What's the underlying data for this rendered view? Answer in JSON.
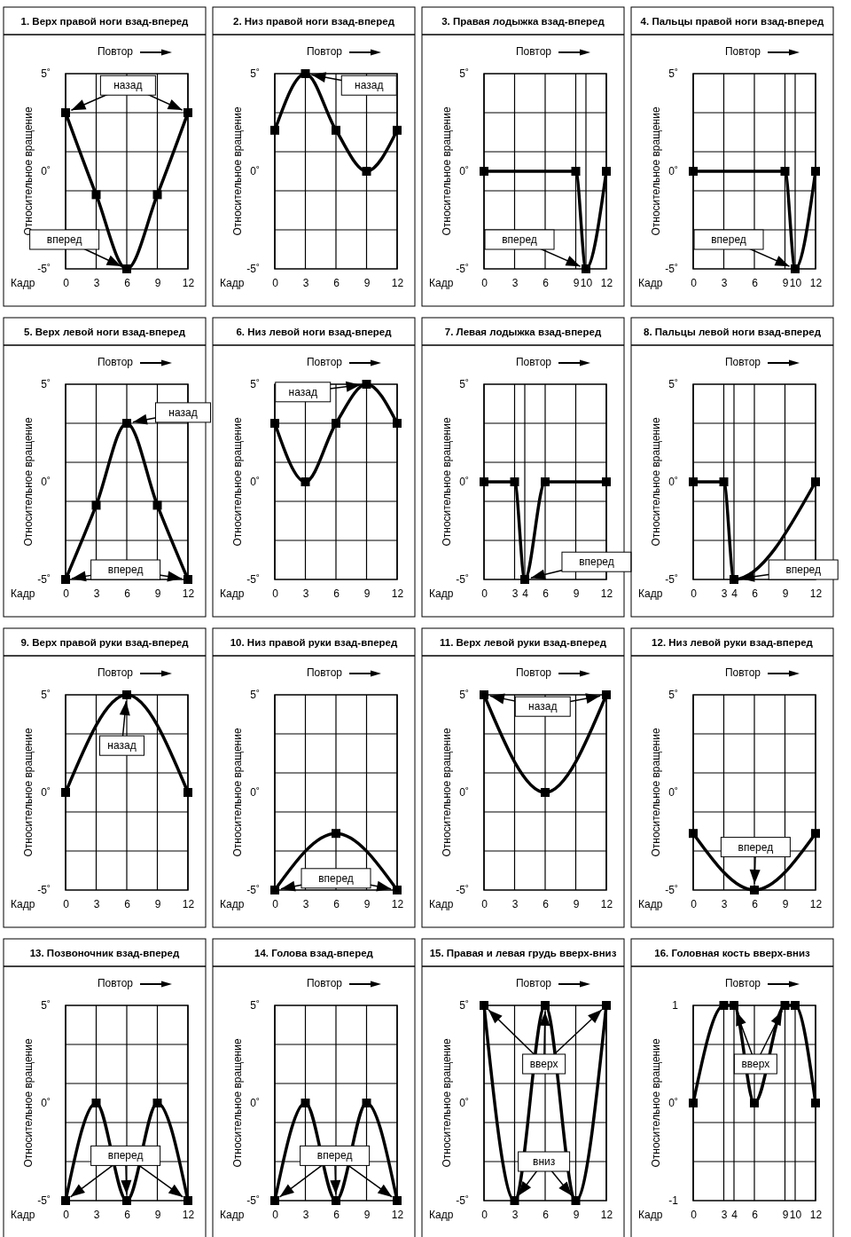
{
  "chart_data": [
    {
      "type": "line",
      "title": "1. Верх правой ноги взад-вперед",
      "xlabel": "Кадр",
      "ylabel": "Относительное вращение",
      "x": [
        0,
        3,
        6,
        9,
        12
      ],
      "values": [
        3,
        -1.2,
        -5,
        -1.2,
        3
      ],
      "color": "#000000",
      "marker": "square",
      "grid": true,
      "xlim": [
        0,
        12
      ],
      "ylim": [
        -5,
        5
      ],
      "xticks": [
        0,
        3,
        6,
        9,
        12
      ],
      "yticks": [
        {
          "value": -5,
          "label": "-5˚"
        },
        {
          "value": -3,
          "label": null
        },
        {
          "value": -1,
          "label": null
        },
        {
          "value": 0,
          "label": "0˚"
        },
        {
          "value": 1,
          "label": null
        },
        {
          "value": 3,
          "label": null
        },
        {
          "value": 5,
          "label": "5˚"
        }
      ],
      "annotations": [
        "Повтор",
        {
          "text": "назад",
          "x": 0,
          "y": 3
        },
        {
          "text": "вперед",
          "x": 6,
          "y": -5
        }
      ]
    },
    {
      "type": "line",
      "title": "2. Низ правой ноги взад-вперед",
      "xlabel": "Кадр",
      "ylabel": "Относительное вращение",
      "x": [
        0,
        3,
        6,
        9,
        12
      ],
      "values": [
        2.1,
        5,
        2.1,
        0,
        2.1
      ],
      "color": "#000000",
      "marker": "square",
      "grid": true,
      "xlim": [
        0,
        12
      ],
      "ylim": [
        -5,
        5
      ],
      "xticks": [
        0,
        3,
        6,
        9,
        12
      ],
      "yticks": [
        {
          "value": -5,
          "label": "-5˚"
        },
        {
          "value": -3,
          "label": null
        },
        {
          "value": -1,
          "label": null
        },
        {
          "value": 0,
          "label": "0˚"
        },
        {
          "value": 1,
          "label": null
        },
        {
          "value": 3,
          "label": null
        },
        {
          "value": 5,
          "label": "5˚"
        }
      ],
      "annotations": [
        "Повтор",
        {
          "text": "назад",
          "x": 3,
          "y": 5
        }
      ]
    },
    {
      "type": "line",
      "title": "3. Правая лодыжка взад-вперед",
      "xlabel": "Кадр",
      "ylabel": "Относительное вращение",
      "x": [
        0,
        9,
        10,
        12
      ],
      "values": [
        0,
        0,
        -5,
        0
      ],
      "color": "#000000",
      "marker": "square",
      "grid": true,
      "xlim": [
        0,
        12
      ],
      "ylim": [
        -5,
        5
      ],
      "xticks": [
        0,
        3,
        6,
        9,
        10,
        12
      ],
      "yticks": [
        {
          "value": -5,
          "label": "-5˚"
        },
        {
          "value": -3,
          "label": null
        },
        {
          "value": -1,
          "label": null
        },
        {
          "value": 0,
          "label": "0˚"
        },
        {
          "value": 1,
          "label": null
        },
        {
          "value": 3,
          "label": null
        },
        {
          "value": 5,
          "label": "5˚"
        }
      ],
      "annotations": [
        "Повтор",
        {
          "text": "вперед",
          "x": 10,
          "y": -5
        }
      ]
    },
    {
      "type": "line",
      "title": "4. Пальцы правой ноги взад-вперед",
      "xlabel": "Кадр",
      "ylabel": "Относительное вращение",
      "x": [
        0,
        9,
        10,
        12
      ],
      "values": [
        0,
        0,
        -5,
        0
      ],
      "color": "#000000",
      "marker": "square",
      "grid": true,
      "xlim": [
        0,
        12
      ],
      "ylim": [
        -5,
        5
      ],
      "xticks": [
        0,
        3,
        6,
        9,
        10,
        12
      ],
      "yticks": [
        {
          "value": -5,
          "label": "-5˚"
        },
        {
          "value": -3,
          "label": null
        },
        {
          "value": -1,
          "label": null
        },
        {
          "value": 0,
          "label": "0˚"
        },
        {
          "value": 1,
          "label": null
        },
        {
          "value": 3,
          "label": null
        },
        {
          "value": 5,
          "label": "5˚"
        }
      ],
      "annotations": [
        "Повтор",
        {
          "text": "вперед",
          "x": 10,
          "y": -5
        }
      ]
    },
    {
      "type": "line",
      "title": "5. Верх левой ноги взад-вперед",
      "xlabel": "Кадр",
      "ylabel": "Относительное вращение",
      "x": [
        0,
        3,
        6,
        9,
        12
      ],
      "values": [
        -5,
        -1.2,
        3,
        -1.2,
        -5
      ],
      "color": "#000000",
      "marker": "square",
      "grid": true,
      "xlim": [
        0,
        12
      ],
      "ylim": [
        -5,
        5
      ],
      "xticks": [
        0,
        3,
        6,
        9,
        12
      ],
      "yticks": [
        {
          "value": -5,
          "label": "-5˚"
        },
        {
          "value": -3,
          "label": null
        },
        {
          "value": -1,
          "label": null
        },
        {
          "value": 0,
          "label": "0˚"
        },
        {
          "value": 1,
          "label": null
        },
        {
          "value": 3,
          "label": null
        },
        {
          "value": 5,
          "label": "5˚"
        }
      ],
      "annotations": [
        "Повтор",
        {
          "text": "назад",
          "x": 6,
          "y": 3
        },
        {
          "text": "вперед",
          "x": 0,
          "y": -5
        }
      ]
    },
    {
      "type": "line",
      "title": "6. Низ левой ноги взад-вперед",
      "xlabel": "Кадр",
      "ylabel": "Относительное вращение",
      "x": [
        0,
        3,
        6,
        9,
        12
      ],
      "values": [
        3,
        0,
        3,
        5,
        3
      ],
      "color": "#000000",
      "marker": "square",
      "grid": true,
      "xlim": [
        0,
        12
      ],
      "ylim": [
        -5,
        5
      ],
      "xticks": [
        0,
        3,
        6,
        9,
        12
      ],
      "yticks": [
        {
          "value": -5,
          "label": "-5˚"
        },
        {
          "value": -3,
          "label": null
        },
        {
          "value": -1,
          "label": null
        },
        {
          "value": 0,
          "label": "0˚"
        },
        {
          "value": 1,
          "label": null
        },
        {
          "value": 3,
          "label": null
        },
        {
          "value": 5,
          "label": "5˚"
        }
      ],
      "annotations": [
        "Повтор",
        {
          "text": "назад",
          "x": 9,
          "y": 5
        }
      ]
    },
    {
      "type": "line",
      "title": "7. Левая лодыжка взад-вперед",
      "xlabel": "Кадр",
      "ylabel": "Относительное вращение",
      "x": [
        0,
        3,
        4,
        6,
        12
      ],
      "values": [
        0,
        0,
        -5,
        0,
        0
      ],
      "color": "#000000",
      "marker": "square",
      "grid": true,
      "xlim": [
        0,
        12
      ],
      "ylim": [
        -5,
        5
      ],
      "xticks": [
        0,
        3,
        4,
        6,
        9,
        12
      ],
      "yticks": [
        {
          "value": -5,
          "label": "-5˚"
        },
        {
          "value": -3,
          "label": null
        },
        {
          "value": -1,
          "label": null
        },
        {
          "value": 0,
          "label": "0˚"
        },
        {
          "value": 1,
          "label": null
        },
        {
          "value": 3,
          "label": null
        },
        {
          "value": 5,
          "label": "5˚"
        }
      ],
      "annotations": [
        "Повтор",
        {
          "text": "вперед",
          "x": 4,
          "y": -5
        }
      ]
    },
    {
      "type": "line",
      "title": "8. Пальцы левой ноги взад-вперед",
      "xlabel": "Кадр",
      "ylabel": "Относительное вращение",
      "x": [
        0,
        3,
        4,
        12
      ],
      "values": [
        0,
        0,
        -5,
        0
      ],
      "color": "#000000",
      "marker": "square",
      "grid": true,
      "xlim": [
        0,
        12
      ],
      "ylim": [
        -5,
        5
      ],
      "xticks": [
        0,
        3,
        4,
        6,
        9,
        12
      ],
      "yticks": [
        {
          "value": -5,
          "label": "-5˚"
        },
        {
          "value": -3,
          "label": null
        },
        {
          "value": -1,
          "label": null
        },
        {
          "value": 0,
          "label": "0˚"
        },
        {
          "value": 1,
          "label": null
        },
        {
          "value": 3,
          "label": null
        },
        {
          "value": 5,
          "label": "5˚"
        }
      ],
      "annotations": [
        "Повтор",
        {
          "text": "вперед",
          "x": 4,
          "y": -5
        }
      ]
    },
    {
      "type": "line",
      "title": "9. Верх правой руки взад-вперед",
      "xlabel": "Кадр",
      "ylabel": "Относительное вращение",
      "x": [
        0,
        6,
        12
      ],
      "values": [
        0,
        5,
        0
      ],
      "color": "#000000",
      "marker": "square",
      "grid": true,
      "xlim": [
        0,
        12
      ],
      "ylim": [
        -5,
        5
      ],
      "xticks": [
        0,
        3,
        6,
        9,
        12
      ],
      "yticks": [
        {
          "value": -5,
          "label": "-5˚"
        },
        {
          "value": -3,
          "label": null
        },
        {
          "value": -1,
          "label": null
        },
        {
          "value": 0,
          "label": "0˚"
        },
        {
          "value": 1,
          "label": null
        },
        {
          "value": 3,
          "label": null
        },
        {
          "value": 5,
          "label": "5˚"
        }
      ],
      "annotations": [
        "Повтор",
        {
          "text": "назад",
          "x": 6,
          "y": 5
        }
      ]
    },
    {
      "type": "line",
      "title": "10. Низ правой руки взад-вперед",
      "xlabel": "Кадр",
      "ylabel": "Относительное вращение",
      "x": [
        0,
        6,
        12
      ],
      "values": [
        -5,
        -2.1,
        -5
      ],
      "color": "#000000",
      "marker": "square",
      "grid": true,
      "xlim": [
        0,
        12
      ],
      "ylim": [
        -5,
        5
      ],
      "xticks": [
        0,
        3,
        6,
        9,
        12
      ],
      "yticks": [
        {
          "value": -5,
          "label": "-5˚"
        },
        {
          "value": -3,
          "label": null
        },
        {
          "value": -1,
          "label": null
        },
        {
          "value": 0,
          "label": "0˚"
        },
        {
          "value": 1,
          "label": null
        },
        {
          "value": 3,
          "label": null
        },
        {
          "value": 5,
          "label": "5˚"
        }
      ],
      "annotations": [
        "Повтор",
        {
          "text": "вперед",
          "x": 0,
          "y": -5
        }
      ]
    },
    {
      "type": "line",
      "title": "11. Верх левой руки взад-вперед",
      "xlabel": "Кадр",
      "ylabel": "Относительное вращение",
      "x": [
        0,
        6,
        12
      ],
      "values": [
        5,
        0,
        5
      ],
      "color": "#000000",
      "marker": "square",
      "grid": true,
      "xlim": [
        0,
        12
      ],
      "ylim": [
        -5,
        5
      ],
      "xticks": [
        0,
        3,
        6,
        9,
        12
      ],
      "yticks": [
        {
          "value": -5,
          "label": "-5˚"
        },
        {
          "value": -3,
          "label": null
        },
        {
          "value": -1,
          "label": null
        },
        {
          "value": 0,
          "label": "0˚"
        },
        {
          "value": 1,
          "label": null
        },
        {
          "value": 3,
          "label": null
        },
        {
          "value": 5,
          "label": "5˚"
        }
      ],
      "annotations": [
        "Повтор",
        {
          "text": "назад",
          "x": 0,
          "y": 5
        }
      ]
    },
    {
      "type": "line",
      "title": "12. Низ левой руки взад-вперед",
      "xlabel": "Кадр",
      "ylabel": "Относительное вращение",
      "x": [
        0,
        6,
        12
      ],
      "values": [
        -2.1,
        -5,
        -2.1
      ],
      "color": "#000000",
      "marker": "square",
      "grid": true,
      "xlim": [
        0,
        12
      ],
      "ylim": [
        -5,
        5
      ],
      "xticks": [
        0,
        3,
        6,
        9,
        12
      ],
      "yticks": [
        {
          "value": -5,
          "label": "-5˚"
        },
        {
          "value": -3,
          "label": null
        },
        {
          "value": -1,
          "label": null
        },
        {
          "value": 0,
          "label": "0˚"
        },
        {
          "value": 1,
          "label": null
        },
        {
          "value": 3,
          "label": null
        },
        {
          "value": 5,
          "label": "5˚"
        }
      ],
      "annotations": [
        "Повтор",
        {
          "text": "вперед",
          "x": 6,
          "y": -5
        }
      ]
    },
    {
      "type": "line",
      "title": "13. Позвоночник взад-вперед",
      "xlabel": "Кадр",
      "ylabel": "Относительное вращение",
      "x": [
        0,
        3,
        6,
        9,
        12
      ],
      "values": [
        -5,
        0,
        -5,
        0,
        -5
      ],
      "color": "#000000",
      "marker": "square",
      "grid": true,
      "xlim": [
        0,
        12
      ],
      "ylim": [
        -5,
        5
      ],
      "xticks": [
        0,
        3,
        6,
        9,
        12
      ],
      "yticks": [
        {
          "value": -5,
          "label": "-5˚"
        },
        {
          "value": -3,
          "label": null
        },
        {
          "value": -1,
          "label": null
        },
        {
          "value": 0,
          "label": "0˚"
        },
        {
          "value": 1,
          "label": null
        },
        {
          "value": 3,
          "label": null
        },
        {
          "value": 5,
          "label": "5˚"
        }
      ],
      "annotations": [
        "Повтор",
        {
          "text": "вперед",
          "x": 6,
          "y": -5
        }
      ]
    },
    {
      "type": "line",
      "title": "14. Голова взад-вперед",
      "xlabel": "Кадр",
      "ylabel": "Относительное вращение",
      "x": [
        0,
        3,
        6,
        9,
        12
      ],
      "values": [
        -5,
        0,
        -5,
        0,
        -5
      ],
      "color": "#000000",
      "marker": "square",
      "grid": true,
      "xlim": [
        0,
        12
      ],
      "ylim": [
        -5,
        5
      ],
      "xticks": [
        0,
        3,
        6,
        9,
        12
      ],
      "yticks": [
        {
          "value": -5,
          "label": "-5˚"
        },
        {
          "value": -3,
          "label": null
        },
        {
          "value": -1,
          "label": null
        },
        {
          "value": 0,
          "label": "0˚"
        },
        {
          "value": 1,
          "label": null
        },
        {
          "value": 3,
          "label": null
        },
        {
          "value": 5,
          "label": "5˚"
        }
      ],
      "annotations": [
        "Повтор",
        {
          "text": "вперед",
          "x": 6,
          "y": -5
        }
      ]
    },
    {
      "type": "line",
      "title": "15. Правая и левая грудь вверх-вниз",
      "xlabel": "Кадр",
      "ylabel": "Относительное вращение",
      "x": [
        0,
        3,
        6,
        9,
        12
      ],
      "values": [
        5,
        -5,
        5,
        -5,
        5
      ],
      "color": "#000000",
      "marker": "square",
      "grid": true,
      "xlim": [
        0,
        12
      ],
      "ylim": [
        -5,
        5
      ],
      "xticks": [
        0,
        3,
        6,
        9,
        12
      ],
      "yticks": [
        {
          "value": -5,
          "label": "-5˚"
        },
        {
          "value": -3,
          "label": null
        },
        {
          "value": -1,
          "label": null
        },
        {
          "value": 0,
          "label": "0˚"
        },
        {
          "value": 1,
          "label": null
        },
        {
          "value": 3,
          "label": null
        },
        {
          "value": 5,
          "label": "5˚"
        }
      ],
      "annotations": [
        "Повтор",
        {
          "text": "вверх",
          "x": 6,
          "y": 5
        },
        {
          "text": "вниз",
          "x": 3,
          "y": -5
        }
      ]
    },
    {
      "type": "line",
      "title": "16. Головная кость вверх-вниз",
      "xlabel": "Кадр",
      "ylabel": "Относительное вращение",
      "x": [
        0,
        3,
        4,
        6,
        9,
        10,
        12
      ],
      "values": [
        0,
        1,
        1,
        0,
        1,
        1,
        0
      ],
      "color": "#000000",
      "marker": "square",
      "grid": true,
      "xlim": [
        0,
        12
      ],
      "ylim": [
        -1,
        1
      ],
      "xticks": [
        0,
        3,
        4,
        6,
        9,
        10,
        12
      ],
      "yticks": [
        {
          "value": -1,
          "label": "-1"
        },
        {
          "value": -0.6,
          "label": null
        },
        {
          "value": -0.2,
          "label": null
        },
        {
          "value": 0,
          "label": "0˚"
        },
        {
          "value": 0.2,
          "label": null
        },
        {
          "value": 0.6,
          "label": null
        },
        {
          "value": 1,
          "label": "1"
        }
      ],
      "annotations": [
        "Повтор",
        {
          "text": "вверх",
          "x": 4,
          "y": 1
        }
      ]
    }
  ]
}
